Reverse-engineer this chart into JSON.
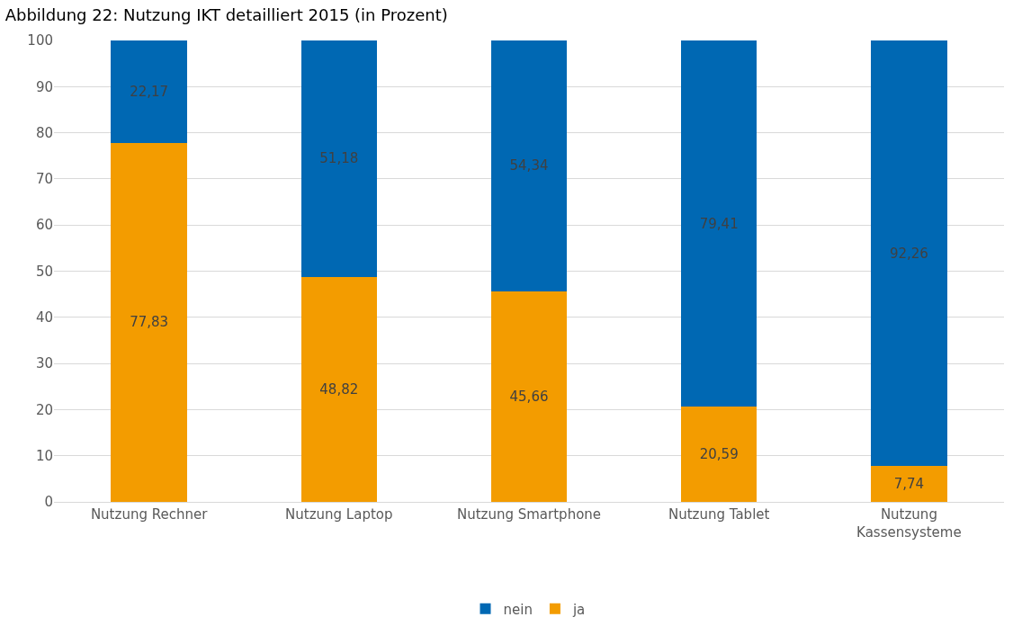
{
  "chart_data": {
    "type": "bar",
    "title": "Abbildung 22: Nutzung IKT detailliert 2015 (in Prozent)",
    "categories": [
      "Nutzung Rechner",
      "Nutzung Laptop",
      "Nutzung Smartphone",
      "Nutzung Tablet",
      "Nutzung Kassensysteme"
    ],
    "stacked": true,
    "series": [
      {
        "name": "ja",
        "color": "#f39c00",
        "values": [
          77.83,
          48.82,
          45.66,
          20.59,
          7.74
        ],
        "value_labels": [
          "77,83",
          "48,82",
          "45,66",
          "20,59",
          "7,74"
        ]
      },
      {
        "name": "nein",
        "color": "#0068b3",
        "values": [
          22.17,
          51.18,
          54.34,
          79.41,
          92.26
        ],
        "value_labels": [
          "22,17",
          "51,18",
          "54,34",
          "79,41",
          "92,26"
        ]
      }
    ],
    "ylim": [
      0,
      100
    ],
    "yticks": [
      0,
      10,
      20,
      30,
      40,
      50,
      60,
      70,
      80,
      90,
      100
    ],
    "grid": "y",
    "legend": "bottom"
  }
}
